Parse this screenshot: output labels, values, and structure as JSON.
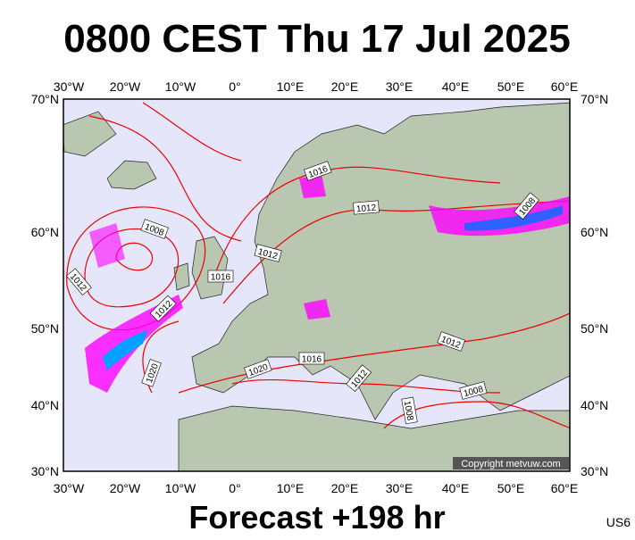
{
  "header": {
    "title": "0800 CEST Thu 17 Jul 2025"
  },
  "map": {
    "lon_labels": [
      "30°W",
      "20°W",
      "10°W",
      "0°",
      "10°E",
      "20°E",
      "30°E",
      "40°E",
      "50°E",
      "60°E"
    ],
    "lat_labels": [
      "70°N",
      "60°N",
      "50°N",
      "40°N",
      "30°N"
    ],
    "isobar_labels": [
      1016,
      1012,
      1008,
      1008,
      1012,
      1016,
      1012,
      1012,
      1012,
      1020,
      1020,
      1016,
      1012,
      1008,
      1008
    ],
    "copyright": "Copyright metvuw.com"
  },
  "footer": {
    "forecast": "Forecast +198 hr",
    "code": "US6"
  }
}
